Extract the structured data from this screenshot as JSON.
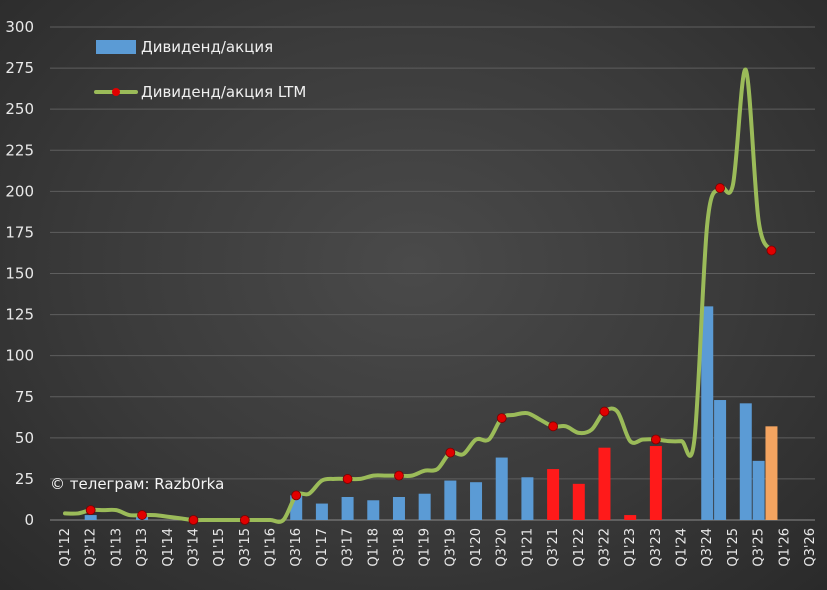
{
  "chart_data": {
    "type": "bar",
    "categories": [
      "Q1'12",
      "Q2'12",
      "Q3'12",
      "Q4'12",
      "Q1'13",
      "Q2'13",
      "Q3'13",
      "Q4'13",
      "Q1'14",
      "Q2'14",
      "Q3'14",
      "Q4'14",
      "Q1'15",
      "Q2'15",
      "Q3'15",
      "Q4'15",
      "Q1'16",
      "Q2'16",
      "Q3'16",
      "Q4'16",
      "Q1'17",
      "Q2'17",
      "Q3'17",
      "Q4'17",
      "Q1'18",
      "Q2'18",
      "Q3'18",
      "Q4'18",
      "Q1'19",
      "Q2'19",
      "Q3'19",
      "Q4'19",
      "Q1'20",
      "Q2'20",
      "Q3'20",
      "Q4'20",
      "Q1'21",
      "Q2'21",
      "Q3'21",
      "Q4'21",
      "Q1'22",
      "Q2'22",
      "Q3'22",
      "Q4'22",
      "Q1'23",
      "Q2'23",
      "Q3'23",
      "Q4'23",
      "Q1'24",
      "Q2'24",
      "Q3'24",
      "Q4'24",
      "Q1'25",
      "Q2'25",
      "Q3'25",
      "Q4'25",
      "Q1'26",
      "Q2'26",
      "Q3'26"
    ],
    "x_tick_labels": [
      "Q1'12",
      "Q3'12",
      "Q1'13",
      "Q3'13",
      "Q1'14",
      "Q3'14",
      "Q1'15",
      "Q3'15",
      "Q1'16",
      "Q3'16",
      "Q1'17",
      "Q3'17",
      "Q1'18",
      "Q3'18",
      "Q1'19",
      "Q3'19",
      "Q1'20",
      "Q3'20",
      "Q1'21",
      "Q3'21",
      "Q1'22",
      "Q3'22",
      "Q1'23",
      "Q3'23",
      "Q1'24",
      "Q3'24",
      "Q1'25",
      "Q3'25",
      "Q1'26",
      "Q3'26"
    ],
    "ylim": [
      0,
      300
    ],
    "y_ticks": [
      0,
      25,
      50,
      75,
      100,
      125,
      150,
      175,
      200,
      225,
      250,
      275,
      300
    ],
    "grid": true,
    "legend_position": "top-left",
    "series": [
      {
        "name": "Дивиденд/акция",
        "type": "bar",
        "color": "#5b9bd5",
        "values": [
          null,
          null,
          3,
          null,
          null,
          null,
          2,
          null,
          null,
          null,
          0,
          null,
          null,
          null,
          0,
          null,
          null,
          null,
          15,
          null,
          10,
          null,
          14,
          null,
          12,
          null,
          14,
          null,
          16,
          null,
          24,
          null,
          23,
          null,
          38,
          null,
          26,
          null,
          null,
          null,
          null,
          null,
          null,
          null,
          null,
          null,
          null,
          null,
          null,
          null,
          130,
          73,
          null,
          71,
          36,
          57,
          null,
          null,
          null
        ],
        "highlight": {
          "red": {
            "color": "#ff1a1a",
            "values": [
              null,
              null,
              null,
              null,
              null,
              null,
              null,
              null,
              null,
              null,
              null,
              null,
              null,
              null,
              null,
              null,
              null,
              null,
              null,
              null,
              null,
              null,
              null,
              null,
              null,
              null,
              null,
              null,
              null,
              null,
              null,
              null,
              null,
              null,
              null,
              null,
              null,
              null,
              31,
              null,
              22,
              null,
              44,
              null,
              3,
              null,
              45,
              null,
              null,
              null,
              null,
              null,
              null,
              null,
              null,
              null,
              null,
              null,
              null
            ]
          },
          "orange": {
            "color": "#f4a460",
            "index": 55
          }
        }
      },
      {
        "name": "Дивиденд/акция LTM",
        "type": "line",
        "color": "#9bbb59",
        "marker_color": "#e00000",
        "values": [
          4,
          4,
          6,
          6,
          6,
          3,
          3,
          3,
          2,
          1,
          0,
          0,
          0,
          0,
          0,
          0,
          0,
          0,
          15,
          16,
          24,
          25,
          25,
          25,
          27,
          27,
          27,
          27,
          30,
          31,
          41,
          40,
          49,
          49,
          62,
          64,
          65,
          61,
          57,
          57,
          53,
          55,
          66,
          66,
          48,
          49,
          49,
          48,
          48,
          49,
          180,
          202,
          204,
          274,
          182,
          164,
          null,
          null,
          null
        ],
        "markers_at": [
          2,
          6,
          10,
          14,
          18,
          22,
          26,
          30,
          34,
          38,
          42,
          46,
          51,
          55
        ]
      }
    ]
  },
  "watermark": "© телеграм: Razb0rka"
}
